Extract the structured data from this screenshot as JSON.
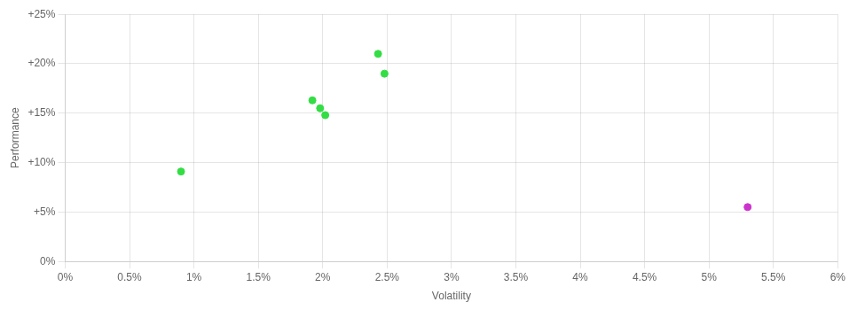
{
  "chart_data": {
    "type": "scatter",
    "xlabel": "Volatility",
    "ylabel": "Performance",
    "xlim": [
      0.0,
      0.06
    ],
    "ylim": [
      0.0,
      0.25
    ],
    "xticks": [
      {
        "value": 0.0,
        "label": "0%"
      },
      {
        "value": 0.005,
        "label": "0.5%"
      },
      {
        "value": 0.01,
        "label": "1%"
      },
      {
        "value": 0.015,
        "label": "1.5%"
      },
      {
        "value": 0.02,
        "label": "2%"
      },
      {
        "value": 0.025,
        "label": "2.5%"
      },
      {
        "value": 0.03,
        "label": "3%"
      },
      {
        "value": 0.035,
        "label": "3.5%"
      },
      {
        "value": 0.04,
        "label": "4%"
      },
      {
        "value": 0.045,
        "label": "4.5%"
      },
      {
        "value": 0.05,
        "label": "5%"
      },
      {
        "value": 0.055,
        "label": "5.5%"
      },
      {
        "value": 0.06,
        "label": "6%"
      }
    ],
    "yticks": [
      {
        "value": 0.0,
        "label": "0%"
      },
      {
        "value": 0.05,
        "label": "+5%"
      },
      {
        "value": 0.1,
        "label": "+10%"
      },
      {
        "value": 0.15,
        "label": "+15%"
      },
      {
        "value": 0.2,
        "label": "+20%"
      },
      {
        "value": 0.25,
        "label": "+25%"
      }
    ],
    "grid": true,
    "series": [
      {
        "color": "#33dd44",
        "x": [
          0.009,
          0.0192,
          0.0198,
          0.0202,
          0.0243,
          0.0248
        ],
        "values": [
          0.091,
          0.163,
          0.155,
          0.148,
          0.21,
          0.19
        ]
      },
      {
        "color": "#cc33cc",
        "x": [
          0.053
        ],
        "values": [
          0.055
        ]
      }
    ]
  }
}
